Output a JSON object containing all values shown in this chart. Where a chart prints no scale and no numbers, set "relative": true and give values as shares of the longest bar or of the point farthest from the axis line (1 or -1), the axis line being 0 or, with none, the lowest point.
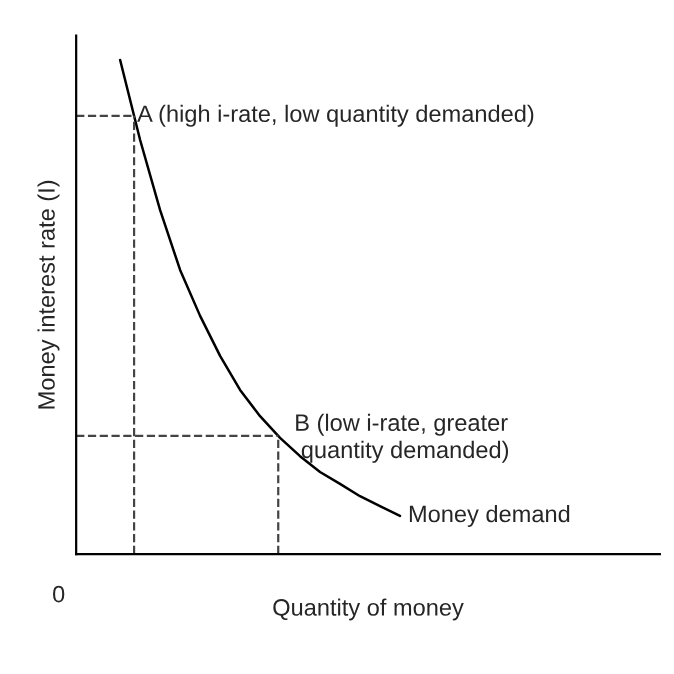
{
  "chart_data": {
    "type": "line",
    "relative": true,
    "xlabel": "Quantity of money",
    "ylabel": "Money interest rate (I)",
    "categories": [
      null,
      null,
      null,
      null,
      null,
      null,
      null,
      null,
      null,
      null,
      null,
      null,
      null,
      null,
      null
    ],
    "series": [
      {
        "name": "Money demand",
        "color": "#000000",
        "values": [
          1,
          0.838,
          0.696,
          0.575,
          0.482,
          0.401,
          0.332,
          0.279,
          0.235,
          0.198,
          0.166,
          0.142,
          0.117,
          0.097,
          0.077
        ]
      }
    ],
    "ref_lines": [
      {
        "axis": "y",
        "value": 0.887,
        "label": "A (high i-rate, low quantity demanded)",
        "line_style": "dashed",
        "color": "#444444"
      },
      {
        "axis": "y",
        "value": 0.239,
        "label": "B (low i-rate, greater\n quantity demanded)",
        "line_style": "dashed",
        "color": "#444444"
      }
    ],
    "annotations": [
      "0"
    ],
    "marker": "none",
    "line_style": "solid",
    "legend": false
  }
}
